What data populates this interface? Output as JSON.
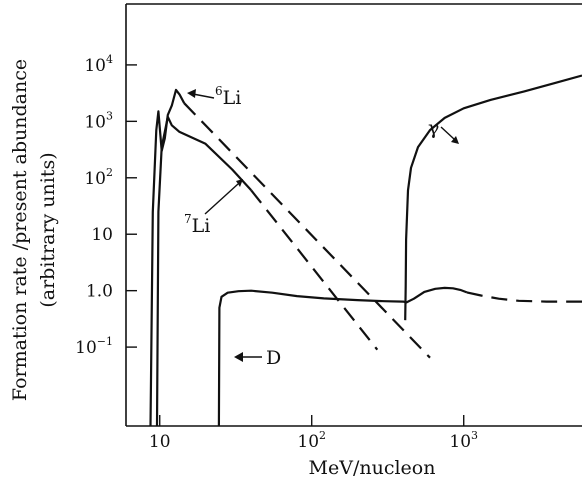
{
  "chart_data": {
    "type": "line",
    "title": "",
    "xlabel": "MeV/nucleon",
    "ylabel": "Formation rate /present abundance",
    "ylabel_units": "(arbitrary units)",
    "x_scale": "log",
    "y_scale": "log",
    "xlim": [
      6,
      6000
    ],
    "ylim": [
      0.004,
      120000
    ],
    "grid": false,
    "x_ticks": [
      {
        "value": 10,
        "label": "10"
      },
      {
        "value": 100,
        "label": "10",
        "exp": "2"
      },
      {
        "value": 1000,
        "label": "10",
        "exp": "3"
      }
    ],
    "y_ticks": [
      {
        "value": 10000,
        "label": "10",
        "exp": "4"
      },
      {
        "value": 1000,
        "label": "10",
        "exp": "3"
      },
      {
        "value": 100,
        "label": "10",
        "exp": "2"
      },
      {
        "value": 10,
        "label": "10",
        "exp": ""
      },
      {
        "value": 1.0,
        "label": "1.0",
        "exp": ""
      },
      {
        "value": 0.1,
        "label": "10",
        "exp": "−1"
      }
    ],
    "series": [
      {
        "key": "li6",
        "label_sup": "6",
        "label": "Li",
        "solid": [
          [
            8.7,
            0.004
          ],
          [
            9.0,
            25
          ],
          [
            9.5,
            700
          ],
          [
            9.8,
            1500
          ],
          [
            10.3,
            300
          ],
          [
            10.8,
            500
          ],
          [
            11.3,
            1300
          ],
          [
            12.0,
            1900
          ],
          [
            12.8,
            3600
          ],
          [
            13.5,
            3000
          ],
          [
            14.5,
            2100
          ]
        ],
        "dashed": [
          [
            14.5,
            2100
          ],
          [
            600,
            0.065
          ]
        ]
      },
      {
        "key": "li7",
        "label_sup": "7",
        "label": "Li",
        "solid": [
          [
            9.6,
            0.004
          ],
          [
            9.8,
            25
          ],
          [
            10.3,
            350
          ],
          [
            10.8,
            650
          ],
          [
            11.3,
            1200
          ],
          [
            12.0,
            850
          ],
          [
            13.5,
            650
          ],
          [
            20,
            400
          ],
          [
            30,
            140
          ],
          [
            40,
            60
          ]
        ],
        "dashed": [
          [
            40,
            60
          ],
          [
            270,
            0.09
          ]
        ]
      },
      {
        "key": "d",
        "label": "D",
        "solid": [
          [
            24.5,
            0.004
          ],
          [
            24.7,
            0.5
          ],
          [
            25.5,
            0.78
          ],
          [
            28,
            0.92
          ],
          [
            33,
            0.98
          ],
          [
            40,
            1.0
          ],
          [
            55,
            0.92
          ],
          [
            80,
            0.8
          ],
          [
            120,
            0.73
          ],
          [
            200,
            0.68
          ],
          [
            300,
            0.65
          ],
          [
            400,
            0.64
          ],
          [
            420,
            0.62
          ],
          [
            470,
            0.72
          ],
          [
            550,
            0.95
          ],
          [
            650,
            1.08
          ],
          [
            750,
            1.12
          ],
          [
            850,
            1.1
          ],
          [
            950,
            1.03
          ],
          [
            1050,
            0.93
          ]
        ],
        "dashed": [
          [
            1050,
            0.93
          ],
          [
            1300,
            0.82
          ],
          [
            1700,
            0.72
          ],
          [
            2300,
            0.66
          ],
          [
            3500,
            0.64
          ],
          [
            6000,
            0.64
          ]
        ]
      },
      {
        "key": "gamma",
        "label": "γ",
        "solid": [
          [
            412,
            0.3
          ],
          [
            415,
            1.2
          ],
          [
            418,
            8
          ],
          [
            430,
            60
          ],
          [
            450,
            150
          ],
          [
            500,
            350
          ],
          [
            600,
            700
          ],
          [
            750,
            1150
          ],
          [
            1000,
            1700
          ],
          [
            1500,
            2400
          ],
          [
            2500,
            3400
          ],
          [
            4000,
            4800
          ],
          [
            6000,
            6500
          ]
        ],
        "dashed": []
      }
    ]
  }
}
